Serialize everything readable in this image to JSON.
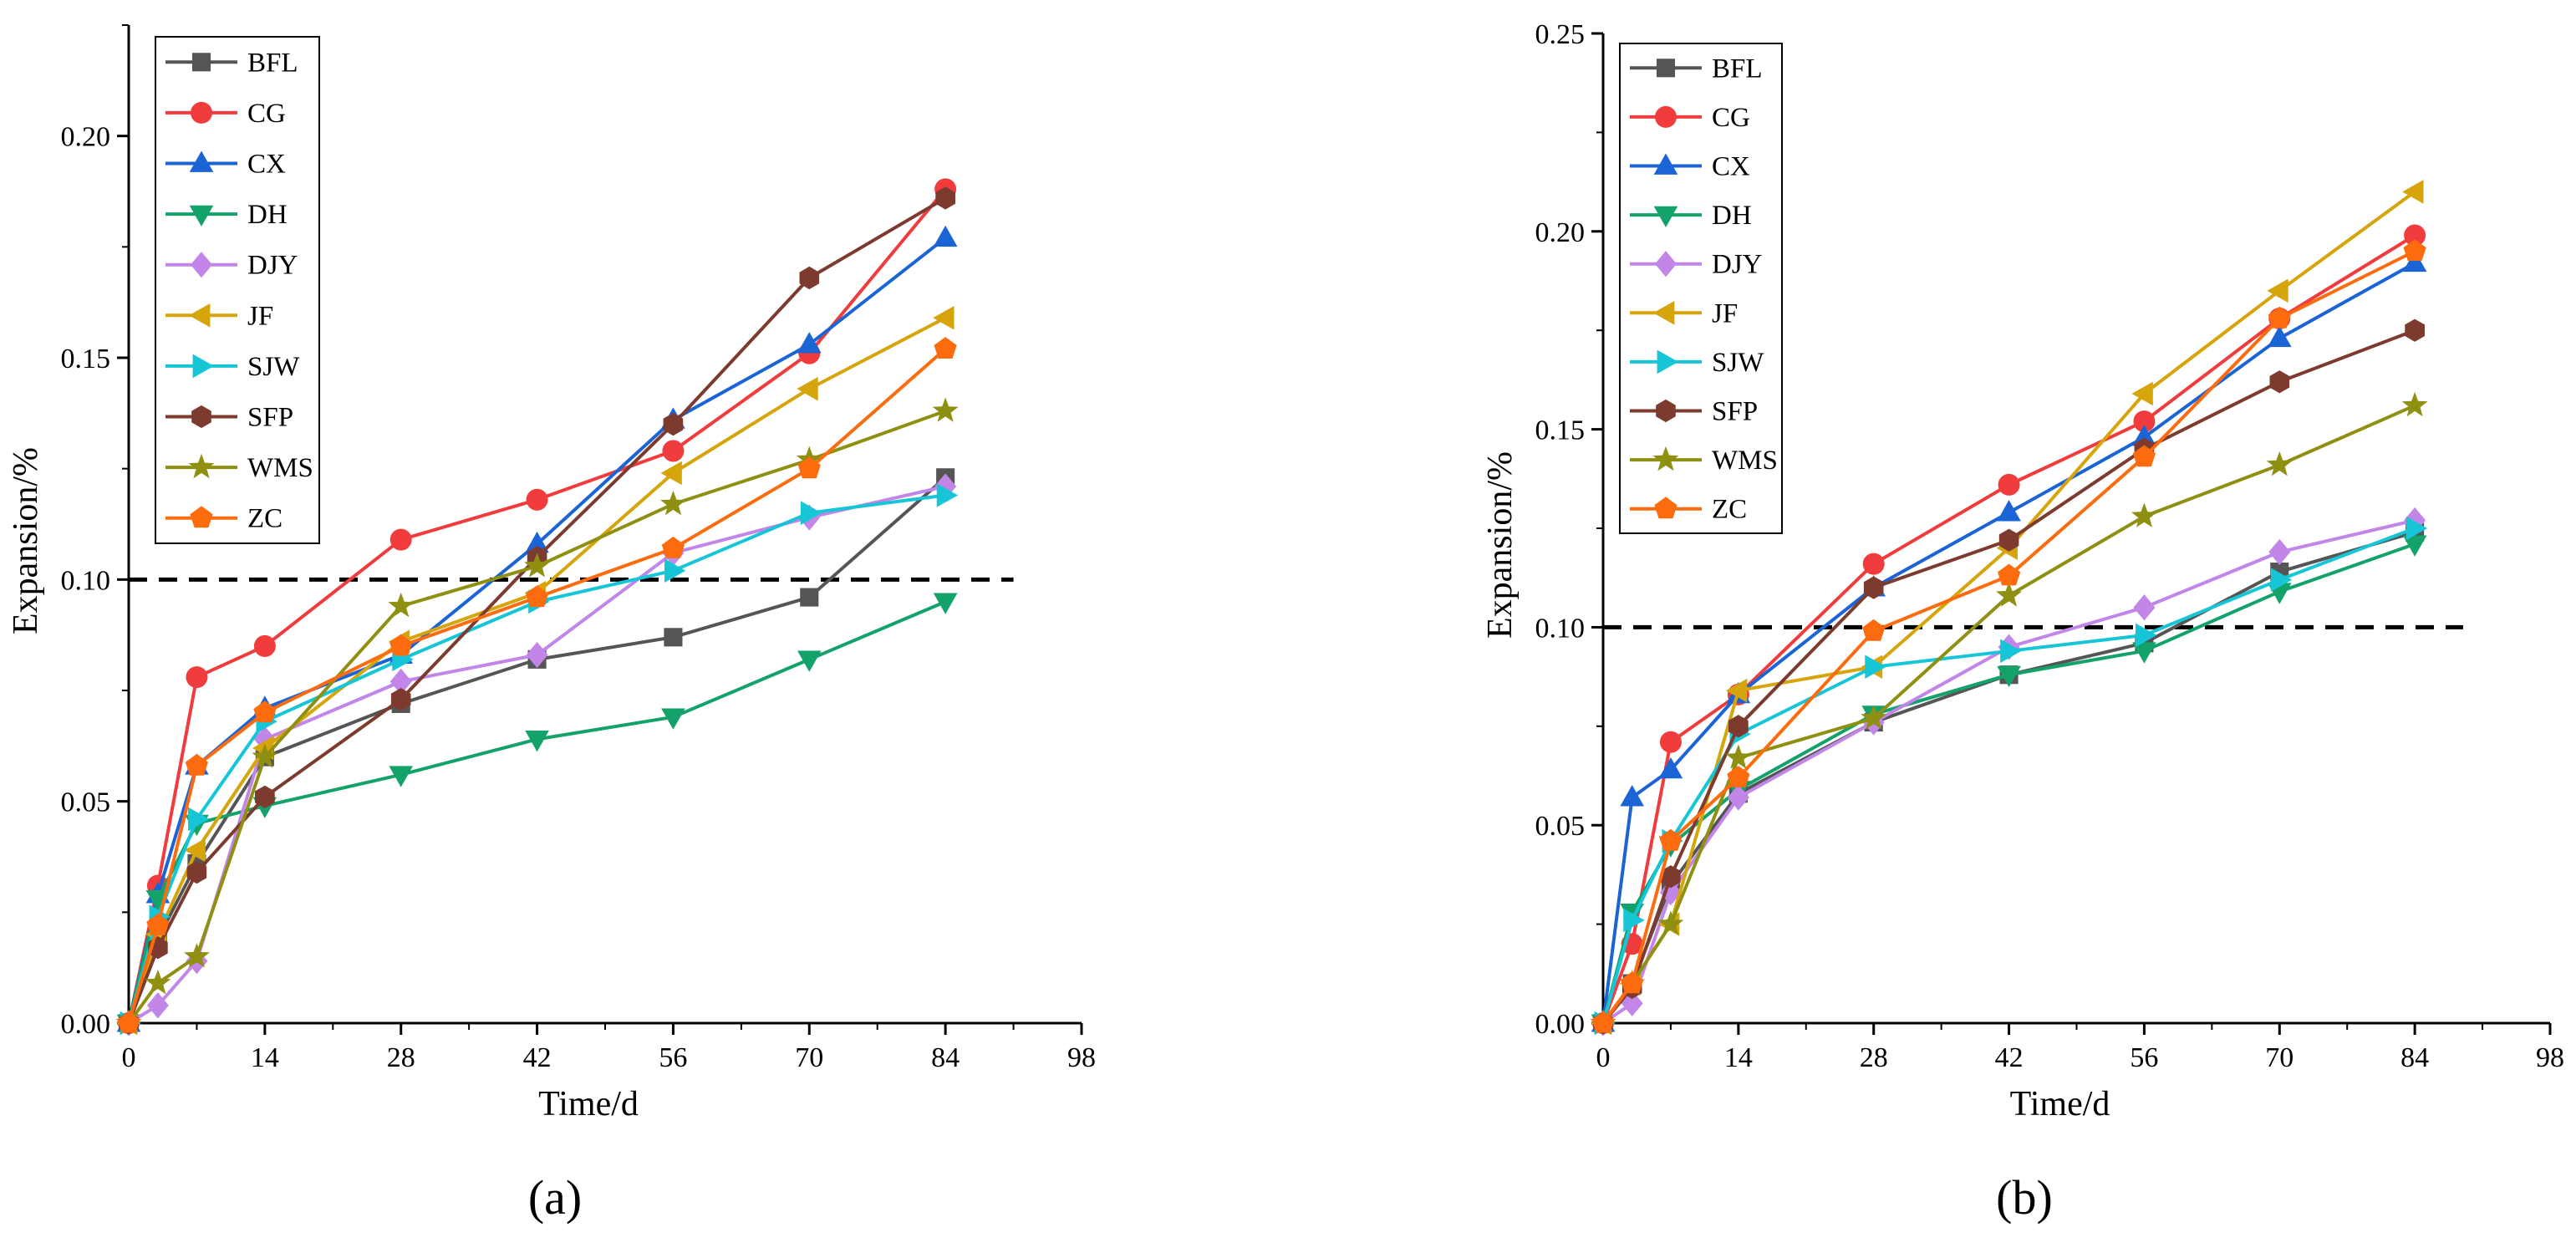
{
  "chart_data": [
    {
      "type": "line",
      "panel_label": "(a)",
      "xlabel": "Time/d",
      "ylabel": "Expansion/%",
      "xlim": [
        0,
        98
      ],
      "ylim": [
        0,
        0.225
      ],
      "xticks": [
        0,
        14,
        28,
        42,
        56,
        70,
        84,
        98
      ],
      "xtick_labels": [
        "0",
        "14",
        "28",
        "42",
        "56",
        "70",
        "84",
        "98"
      ],
      "yticks": [
        0,
        0.05,
        0.1,
        0.15,
        0.2
      ],
      "ytick_labels": [
        "0.00",
        "0.05",
        "0.10",
        "0.15",
        "0.20"
      ],
      "reference_line": {
        "y": 0.1,
        "x_end": 91,
        "style": "dashed"
      },
      "legend_position": "top-left",
      "series": [
        {
          "name": "BFL",
          "color": "#555555",
          "marker": "square",
          "x": [
            0,
            3,
            7,
            14,
            28,
            42,
            56,
            70,
            84
          ],
          "values": [
            0,
            0.019,
            0.036,
            0.06,
            0.072,
            0.082,
            0.087,
            0.096,
            0.123
          ]
        },
        {
          "name": "CG",
          "color": "#f03c3c",
          "marker": "circle",
          "x": [
            0,
            3,
            7,
            14,
            28,
            42,
            56,
            70,
            84
          ],
          "values": [
            0,
            0.031,
            0.078,
            0.085,
            0.109,
            0.118,
            0.129,
            0.151,
            0.188
          ]
        },
        {
          "name": "CX",
          "color": "#1a64d6",
          "marker": "triangle-up",
          "x": [
            0,
            3,
            7,
            14,
            28,
            42,
            56,
            70,
            84
          ],
          "values": [
            0,
            0.029,
            0.058,
            0.071,
            0.083,
            0.108,
            0.136,
            0.153,
            0.177
          ]
        },
        {
          "name": "DH",
          "color": "#13a36a",
          "marker": "triangle-down",
          "x": [
            0,
            3,
            7,
            14,
            28,
            42,
            56,
            70,
            84
          ],
          "values": [
            0,
            0.028,
            0.045,
            0.049,
            0.056,
            0.064,
            0.069,
            0.082,
            0.095
          ]
        },
        {
          "name": "DJY",
          "color": "#c285e8",
          "marker": "diamond",
          "x": [
            0,
            3,
            7,
            14,
            28,
            42,
            56,
            70,
            84
          ],
          "values": [
            0,
            0.004,
            0.014,
            0.064,
            0.077,
            0.083,
            0.106,
            0.114,
            0.121
          ]
        },
        {
          "name": "JF",
          "color": "#d6a40b",
          "marker": "triangle-left",
          "x": [
            0,
            3,
            7,
            14,
            28,
            42,
            56,
            70,
            84
          ],
          "values": [
            0,
            0.02,
            0.039,
            0.062,
            0.086,
            0.097,
            0.124,
            0.143,
            0.159
          ]
        },
        {
          "name": "SJW",
          "color": "#16c5d6",
          "marker": "triangle-right",
          "x": [
            0,
            3,
            7,
            14,
            28,
            42,
            56,
            70,
            84
          ],
          "values": [
            0,
            0.024,
            0.046,
            0.068,
            0.082,
            0.095,
            0.102,
            0.115,
            0.119
          ]
        },
        {
          "name": "SFP",
          "color": "#7d3b2f",
          "marker": "hexagon",
          "x": [
            0,
            3,
            7,
            14,
            28,
            42,
            56,
            70,
            84
          ],
          "values": [
            0,
            0.017,
            0.034,
            0.051,
            0.073,
            0.105,
            0.135,
            0.168,
            0.186
          ]
        },
        {
          "name": "WMS",
          "color": "#8f8f12",
          "marker": "star",
          "x": [
            0,
            3,
            7,
            14,
            28,
            42,
            56,
            70,
            84
          ],
          "values": [
            0,
            0.009,
            0.015,
            0.06,
            0.094,
            0.103,
            0.117,
            0.127,
            0.138
          ]
        },
        {
          "name": "ZC",
          "color": "#fc6c0e",
          "marker": "pentagon",
          "x": [
            0,
            3,
            7,
            14,
            28,
            42,
            56,
            70,
            84
          ],
          "values": [
            0,
            0.022,
            0.058,
            0.07,
            0.085,
            0.096,
            0.107,
            0.125,
            0.152
          ]
        }
      ]
    },
    {
      "type": "line",
      "panel_label": "(b)",
      "xlabel": "Time/d",
      "ylabel": "Expansion/%",
      "xlim": [
        0,
        98
      ],
      "ylim": [
        0,
        0.25
      ],
      "xticks": [
        0,
        14,
        28,
        42,
        56,
        70,
        84,
        98
      ],
      "xtick_labels": [
        "0",
        "14",
        "28",
        "42",
        "56",
        "70",
        "84",
        "98"
      ],
      "yticks": [
        0,
        0.05,
        0.1,
        0.15,
        0.2,
        0.25
      ],
      "ytick_labels": [
        "0.00",
        "0.05",
        "0.10",
        "0.15",
        "0.20",
        "0.25"
      ],
      "reference_line": {
        "y": 0.1,
        "x_end": 89,
        "style": "dashed"
      },
      "legend_position": "top-left",
      "series": [
        {
          "name": "BFL",
          "color": "#555555",
          "marker": "square",
          "x": [
            0,
            3,
            7,
            14,
            28,
            42,
            56,
            70,
            84
          ],
          "values": [
            0,
            0.01,
            0.035,
            0.058,
            0.076,
            0.088,
            0.096,
            0.114,
            0.124
          ]
        },
        {
          "name": "CG",
          "color": "#f03c3c",
          "marker": "circle",
          "x": [
            0,
            3,
            7,
            14,
            28,
            42,
            56,
            70,
            84
          ],
          "values": [
            0,
            0.02,
            0.071,
            0.083,
            0.116,
            0.136,
            0.152,
            0.178,
            0.199
          ]
        },
        {
          "name": "CX",
          "color": "#1a64d6",
          "marker": "triangle-up",
          "x": [
            0,
            3,
            7,
            14,
            28,
            42,
            56,
            70,
            84
          ],
          "values": [
            0,
            0.057,
            0.064,
            0.083,
            0.11,
            0.129,
            0.148,
            0.173,
            0.192
          ]
        },
        {
          "name": "DH",
          "color": "#13a36a",
          "marker": "triangle-down",
          "x": [
            0,
            3,
            7,
            14,
            28,
            42,
            56,
            70,
            84
          ],
          "values": [
            0,
            0.028,
            0.045,
            0.059,
            0.078,
            0.088,
            0.094,
            0.109,
            0.121
          ]
        },
        {
          "name": "DJY",
          "color": "#c285e8",
          "marker": "diamond",
          "x": [
            0,
            3,
            7,
            14,
            28,
            42,
            56,
            70,
            84
          ],
          "values": [
            0,
            0.005,
            0.033,
            0.057,
            0.076,
            0.095,
            0.105,
            0.119,
            0.127
          ]
        },
        {
          "name": "JF",
          "color": "#d6a40b",
          "marker": "triangle-left",
          "x": [
            0,
            3,
            7,
            14,
            28,
            42,
            56,
            70,
            84
          ],
          "values": [
            0,
            0.01,
            0.025,
            0.084,
            0.09,
            0.12,
            0.159,
            0.185,
            0.21
          ]
        },
        {
          "name": "SJW",
          "color": "#16c5d6",
          "marker": "triangle-right",
          "x": [
            0,
            3,
            7,
            14,
            28,
            42,
            56,
            70,
            84
          ],
          "values": [
            0,
            0.026,
            0.046,
            0.073,
            0.09,
            0.094,
            0.098,
            0.112,
            0.125
          ]
        },
        {
          "name": "SFP",
          "color": "#7d3b2f",
          "marker": "hexagon",
          "x": [
            0,
            3,
            7,
            14,
            28,
            42,
            56,
            70,
            84
          ],
          "values": [
            0,
            0.009,
            0.037,
            0.075,
            0.11,
            0.122,
            0.145,
            0.162,
            0.175
          ]
        },
        {
          "name": "WMS",
          "color": "#8f8f12",
          "marker": "star",
          "x": [
            0,
            3,
            7,
            14,
            28,
            42,
            56,
            70,
            84
          ],
          "values": [
            0,
            0.01,
            0.025,
            0.067,
            0.077,
            0.108,
            0.128,
            0.141,
            0.156
          ]
        },
        {
          "name": "ZC",
          "color": "#fc6c0e",
          "marker": "pentagon",
          "x": [
            0,
            3,
            7,
            14,
            28,
            42,
            56,
            70,
            84
          ],
          "values": [
            0,
            0.01,
            0.046,
            0.062,
            0.099,
            0.113,
            0.143,
            0.178,
            0.195
          ]
        }
      ]
    }
  ]
}
